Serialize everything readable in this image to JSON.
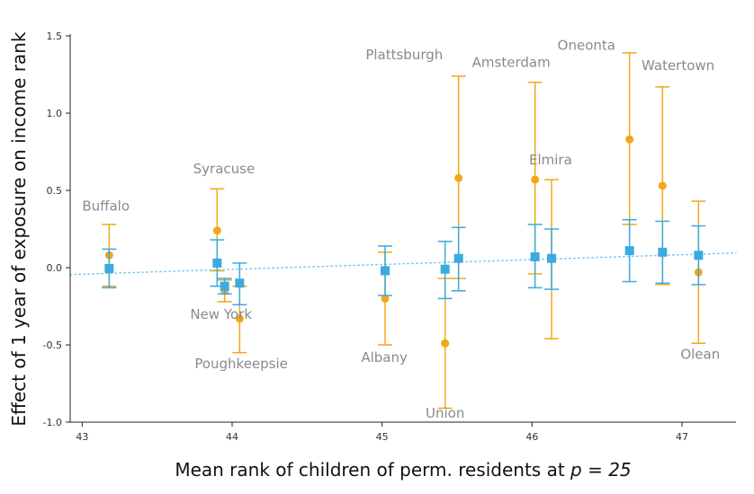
{
  "chart_data": {
    "type": "scatter",
    "xlabel": "Mean rank of children of perm. residents at ",
    "xlabel_math": "p = 25",
    "ylabel": "Effect of 1 year of exposure on income rank",
    "xlim": [
      42.92,
      47.36
    ],
    "ylim": [
      -1.0,
      1.5
    ],
    "xticks": [
      43,
      44,
      45,
      46,
      47
    ],
    "yticks": [
      -1.0,
      -0.5,
      0.0,
      0.5,
      1.0,
      1.5
    ],
    "ytick_labels": [
      "-1.0",
      "-0.5",
      "0.0",
      "0.5",
      "1.0",
      "1.5"
    ],
    "colors": {
      "orange": "#f0a818",
      "blue": "#3aaae0",
      "trend": "#7cc8ee",
      "label": "#8a8a8a",
      "axis": "#222222"
    },
    "trend_line": {
      "style": "dotted",
      "x": [
        42.92,
        47.36
      ],
      "y": [
        -0.045,
        0.095
      ]
    },
    "series": [
      {
        "marker": "circle",
        "color": "orange",
        "points": [
          {
            "x": 43.18,
            "y": 0.08,
            "lo": -0.12,
            "hi": 0.28
          },
          {
            "x": 43.9,
            "y": 0.24,
            "lo": -0.02,
            "hi": 0.51
          },
          {
            "x": 43.95,
            "y": -0.15,
            "lo": -0.22,
            "hi": -0.08
          },
          {
            "x": 44.05,
            "y": -0.33,
            "lo": -0.55,
            "hi": -0.12
          },
          {
            "x": 45.02,
            "y": -0.2,
            "lo": -0.5,
            "hi": 0.1
          },
          {
            "x": 45.42,
            "y": -0.49,
            "lo": -0.91,
            "hi": -0.07
          },
          {
            "x": 45.51,
            "y": 0.58,
            "lo": -0.07,
            "hi": 1.24
          },
          {
            "x": 46.02,
            "y": 0.57,
            "lo": -0.04,
            "hi": 1.2
          },
          {
            "x": 46.13,
            "y": 0.06,
            "lo": -0.46,
            "hi": 0.57
          },
          {
            "x": 46.65,
            "y": 0.83,
            "lo": 0.28,
            "hi": 1.39
          },
          {
            "x": 46.87,
            "y": 0.53,
            "lo": -0.11,
            "hi": 1.17
          },
          {
            "x": 47.11,
            "y": -0.03,
            "lo": -0.49,
            "hi": 0.43
          }
        ]
      },
      {
        "marker": "square",
        "color": "blue",
        "points": [
          {
            "x": 43.18,
            "y": -0.005,
            "lo": -0.13,
            "hi": 0.12
          },
          {
            "x": 43.9,
            "y": 0.03,
            "lo": -0.12,
            "hi": 0.18
          },
          {
            "x": 43.95,
            "y": -0.12,
            "lo": -0.17,
            "hi": -0.07
          },
          {
            "x": 44.05,
            "y": -0.1,
            "lo": -0.24,
            "hi": 0.03
          },
          {
            "x": 45.02,
            "y": -0.02,
            "lo": -0.18,
            "hi": 0.14
          },
          {
            "x": 45.42,
            "y": -0.01,
            "lo": -0.2,
            "hi": 0.17
          },
          {
            "x": 45.51,
            "y": 0.06,
            "lo": -0.15,
            "hi": 0.26
          },
          {
            "x": 46.02,
            "y": 0.07,
            "lo": -0.13,
            "hi": 0.28
          },
          {
            "x": 46.13,
            "y": 0.06,
            "lo": -0.14,
            "hi": 0.25
          },
          {
            "x": 46.65,
            "y": 0.11,
            "lo": -0.09,
            "hi": 0.31
          },
          {
            "x": 46.87,
            "y": 0.1,
            "lo": -0.1,
            "hi": 0.3
          },
          {
            "x": 47.11,
            "y": 0.08,
            "lo": -0.11,
            "hi": 0.27
          }
        ]
      }
    ],
    "annotations": [
      {
        "text": "Buffalo",
        "x": 43.0,
        "y": 0.37
      },
      {
        "text": "Syracuse",
        "x": 43.74,
        "y": 0.61
      },
      {
        "text": "New York",
        "x": 43.72,
        "y": -0.33
      },
      {
        "text": "Poughkeepsie",
        "x": 43.75,
        "y": -0.65
      },
      {
        "text": "Albany",
        "x": 44.86,
        "y": -0.61
      },
      {
        "text": "Union",
        "x": 45.29,
        "y": -0.97
      },
      {
        "text": "Plattsburgh",
        "x": 44.89,
        "y": 1.35
      },
      {
        "text": "Amsterdam",
        "x": 45.6,
        "y": 1.3
      },
      {
        "text": "Elmira",
        "x": 45.98,
        "y": 0.67
      },
      {
        "text": "Oneonta",
        "x": 46.17,
        "y": 1.41
      },
      {
        "text": "Watertown",
        "x": 46.73,
        "y": 1.28
      },
      {
        "text": "Olean",
        "x": 46.99,
        "y": -0.59
      }
    ]
  }
}
